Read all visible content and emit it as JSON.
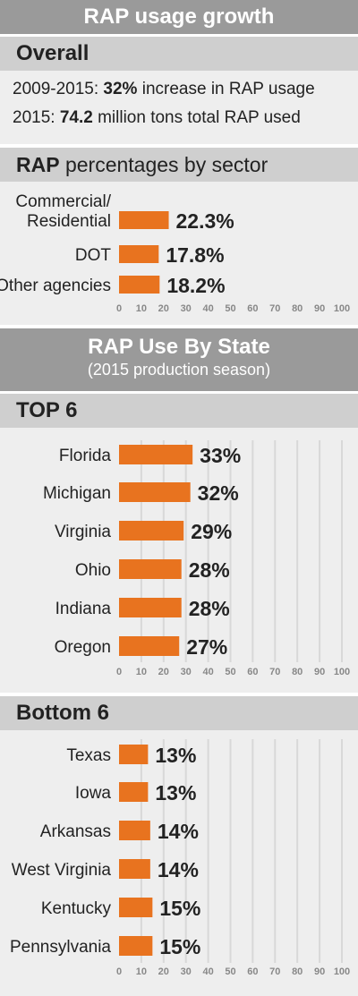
{
  "header": {
    "title": "RAP usage growth"
  },
  "overall": {
    "heading": "Overall",
    "line1": {
      "prefix": "2009-2015: ",
      "highlight": "32%",
      "suffix": " increase in RAP usage"
    },
    "line2": {
      "prefix": "2015: ",
      "highlight": "74.2",
      "suffix": " million tons total RAP used"
    }
  },
  "sector_heading": {
    "bold": "RAP",
    "rest": " percentages by sector"
  },
  "state_header": {
    "title": "RAP Use By State",
    "subtitle": "(2015 production season)"
  },
  "colors": {
    "bar": "#e8731f",
    "title_band": "#9a9a9a",
    "section_band": "#cfcfcf",
    "panel": "#eeeeee",
    "gridline": "#d8d8d8"
  },
  "chart_data": [
    {
      "type": "bar",
      "orientation": "horizontal",
      "title": "RAP percentages by sector",
      "categories": [
        [
          "Commercial/",
          "Residential"
        ],
        [
          "DOT"
        ],
        [
          "Other agencies"
        ]
      ],
      "values": [
        22.3,
        17.8,
        18.2
      ],
      "value_labels": [
        "22.3%",
        "17.8%",
        "18.2%"
      ],
      "xlim": [
        0,
        100
      ],
      "ticks": [
        0,
        10,
        20,
        30,
        40,
        50,
        60,
        70,
        80,
        90,
        100
      ],
      "grid": false
    },
    {
      "type": "bar",
      "orientation": "horizontal",
      "title": "TOP 6",
      "categories": [
        [
          "Florida"
        ],
        [
          "Michigan"
        ],
        [
          "Virginia"
        ],
        [
          "Ohio"
        ],
        [
          "Indiana"
        ],
        [
          "Oregon"
        ]
      ],
      "values": [
        33,
        32,
        29,
        28,
        28,
        27
      ],
      "value_labels": [
        "33%",
        "32%",
        "29%",
        "28%",
        "28%",
        "27%"
      ],
      "xlim": [
        0,
        100
      ],
      "ticks": [
        0,
        10,
        20,
        30,
        40,
        50,
        60,
        70,
        80,
        90,
        100
      ],
      "grid": true
    },
    {
      "type": "bar",
      "orientation": "horizontal",
      "title": "Bottom 6",
      "categories": [
        [
          "Texas"
        ],
        [
          "Iowa"
        ],
        [
          "Arkansas"
        ],
        [
          "West Virginia"
        ],
        [
          "Kentucky"
        ],
        [
          "Pennsylvania"
        ]
      ],
      "values": [
        13,
        13,
        14,
        14,
        15,
        15
      ],
      "value_labels": [
        "13%",
        "13%",
        "14%",
        "14%",
        "15%",
        "15%"
      ],
      "xlim": [
        0,
        100
      ],
      "ticks": [
        0,
        10,
        20,
        30,
        40,
        50,
        60,
        70,
        80,
        90,
        100
      ],
      "grid": true
    }
  ]
}
